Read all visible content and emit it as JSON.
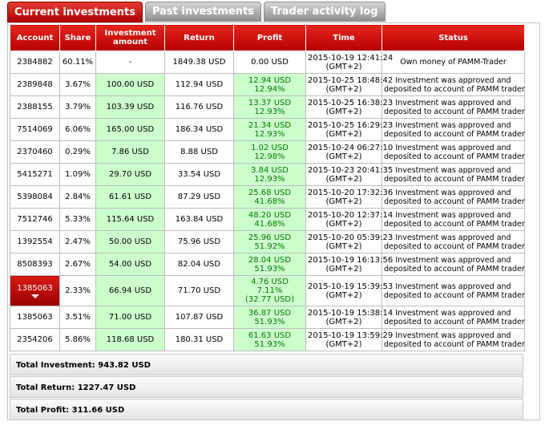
{
  "tabs": [
    {
      "label": "Current investments",
      "active": true
    },
    {
      "label": "Past investments",
      "active": false
    },
    {
      "label": "Trader activity log",
      "active": false
    }
  ],
  "columns": [
    "Account",
    "Share",
    "Investment amount",
    "Return",
    "Profit",
    "Time",
    "Status"
  ],
  "rows": [
    {
      "account": "2384882",
      "share": "60.11%",
      "amount": "-",
      "return": "1849.38 USD",
      "profit": [
        "0.00 USD"
      ],
      "time": [
        "2015-10-19 12:41:24",
        "(GMT+2)"
      ],
      "status": [
        "Own money of PAMM-Trader"
      ]
    },
    {
      "account": "2389848",
      "share": "3.67%",
      "amount": "100.00 USD",
      "return": "112.94 USD",
      "profit": [
        "12.94 USD",
        "12.94%"
      ],
      "time": [
        "2015-10-25 18:48:42",
        "(GMT+2)"
      ],
      "status": [
        "Investment was approved and",
        "deposited to account of PAMM trader"
      ]
    },
    {
      "account": "2388155",
      "share": "3.79%",
      "amount": "103.39 USD",
      "return": "116.76 USD",
      "profit": [
        "13.37 USD",
        "12.93%"
      ],
      "time": [
        "2015-10-25 16:38:23",
        "(GMT+2)"
      ],
      "status": [
        "Investment was approved and",
        "deposited to account of PAMM trader"
      ]
    },
    {
      "account": "7514069",
      "share": "6.06%",
      "amount": "165.00 USD",
      "return": "186.34 USD",
      "profit": [
        "21.34 USD",
        "12.93%"
      ],
      "time": [
        "2015-10-25 16:29:23",
        "(GMT+2)"
      ],
      "status": [
        "Investment was approved and",
        "deposited to account of PAMM trader"
      ]
    },
    {
      "account": "2370460",
      "share": "0.29%",
      "amount": "7.86 USD",
      "return": "8.88 USD",
      "profit": [
        "1.02 USD",
        "12.98%"
      ],
      "time": [
        "2015-10-24 06:27:10",
        "(GMT+2)"
      ],
      "status": [
        "Investment was approved and",
        "deposited to account of PAMM trader"
      ]
    },
    {
      "account": "5415271",
      "share": "1.09%",
      "amount": "29.70 USD",
      "return": "33.54 USD",
      "profit": [
        "3.84 USD",
        "12.93%"
      ],
      "time": [
        "2015-10-23 20:41:35",
        "(GMT+2)"
      ],
      "status": [
        "Investment was approved and",
        "deposited to account of PAMM trader"
      ]
    },
    {
      "account": "5398084",
      "share": "2.84%",
      "amount": "61.61 USD",
      "return": "87.29 USD",
      "profit": [
        "25.68 USD",
        "41.68%"
      ],
      "time": [
        "2015-10-20 17:32:36",
        "(GMT+2)"
      ],
      "status": [
        "Investment was approved and",
        "deposited to account of PAMM trader"
      ]
    },
    {
      "account": "7512746",
      "share": "5.33%",
      "amount": "115.64 USD",
      "return": "163.84 USD",
      "profit": [
        "48.20 USD",
        "41.68%"
      ],
      "time": [
        "2015-10-20 12:37:14",
        "(GMT+2)"
      ],
      "status": [
        "Investment was approved and",
        "deposited to account of PAMM trader"
      ]
    },
    {
      "account": "1392554",
      "share": "2.47%",
      "amount": "50.00 USD",
      "return": "75.96 USD",
      "profit": [
        "25.96 USD",
        "51.92%"
      ],
      "time": [
        "2015-10-20 05:39:23",
        "(GMT+2)"
      ],
      "status": [
        "Investment was approved and",
        "deposited to account of PAMM trader"
      ]
    },
    {
      "account": "8508393",
      "share": "2.67%",
      "amount": "54.00 USD",
      "return": "82.04 USD",
      "profit": [
        "28.04 USD",
        "51.93%"
      ],
      "time": [
        "2015-10-19 16:13:56",
        "(GMT+2)"
      ],
      "status": [
        "Investment was approved and",
        "deposited to account of PAMM trader"
      ]
    },
    {
      "account": "1385063",
      "share": "2.33%",
      "amount": "66.94 USD",
      "return": "71.70 USD",
      "profit": [
        "4.76 USD",
        "7.11%",
        "(32.77 USD)"
      ],
      "time": [
        "2015-10-19 15:39:53",
        "(GMT+2)"
      ],
      "status": [
        "Investment was approved and",
        "deposited to account of PAMM trader"
      ],
      "selected": true
    },
    {
      "account": "1385063",
      "share": "3.51%",
      "amount": "71.00 USD",
      "return": "107.87 USD",
      "profit": [
        "36.87 USD",
        "51.93%"
      ],
      "time": [
        "2015-10-19 15:38:14",
        "(GMT+2)"
      ],
      "status": [
        "Investment was approved and",
        "deposited to account of PAMM trader"
      ]
    },
    {
      "account": "2354206",
      "share": "5.86%",
      "amount": "118.68 USD",
      "return": "180.31 USD",
      "profit": [
        "61.63 USD",
        "51.93%"
      ],
      "time": [
        "2015-10-19 13:59:29",
        "(GMT+2)"
      ],
      "status": [
        "Investment was approved and",
        "deposited to account of PAMM trader"
      ]
    }
  ],
  "totals": {
    "investment": "Total Investment: 943.82 USD",
    "return": "Total Return: 1227.47 USD",
    "profit": "Total Profit: 311.66 USD"
  },
  "colors": {
    "header_red": "#d20c0c",
    "profit_green_bg": "#ccffcc",
    "profit_text": "#007700"
  }
}
